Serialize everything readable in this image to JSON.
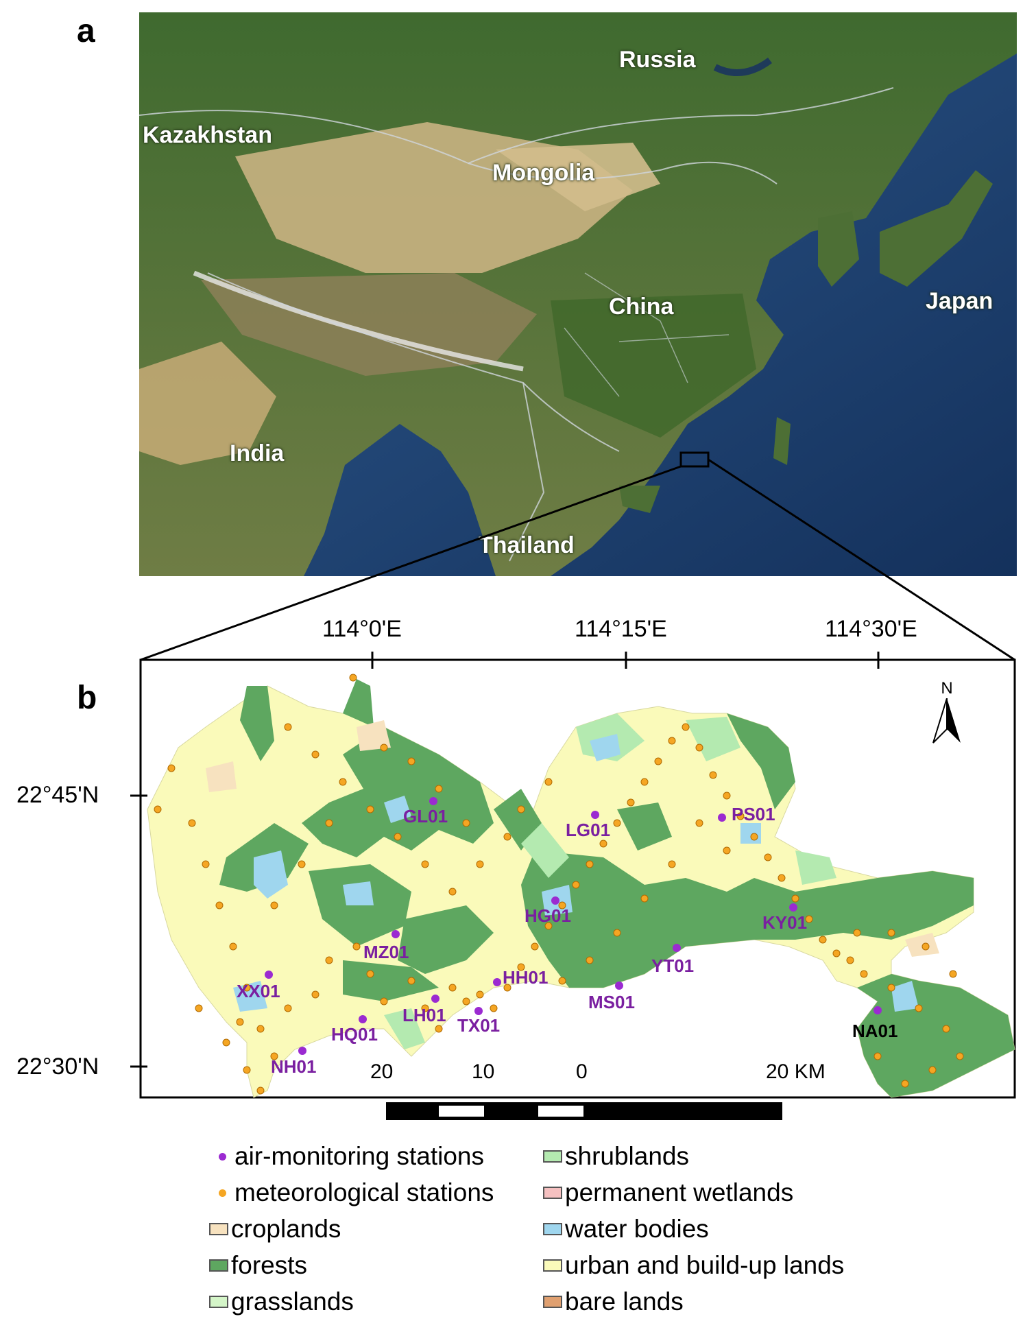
{
  "panels": {
    "a": "a",
    "b": "b"
  },
  "colors": {
    "forest": "#5ea760",
    "urban": "#fafaba",
    "shrub": "#b4eab0",
    "grass": "#d4f5c8",
    "water": "#9fd6ee",
    "cropland": "#f7e2bf",
    "wetland": "#f5c0c0",
    "bare": "#e0a070",
    "air_station": "#9b2ad1",
    "met_station": "#f5a623",
    "label": "#7a1fa0"
  },
  "map_a": {
    "countries": [
      "Russia",
      "Kazakhstan",
      "Mongolia",
      "China",
      "Japan",
      "India",
      "Thailand"
    ]
  },
  "map_b": {
    "lon_labels": [
      "114°0'E",
      "114°15'E",
      "114°30'E"
    ],
    "lat_labels": [
      "22°45'N",
      "22°30'N"
    ],
    "north": "N",
    "scale_labels": [
      "20",
      "10",
      "0",
      "20 KM"
    ],
    "air_stations": [
      "GL01",
      "LG01",
      "PS01",
      "HG01",
      "KY01",
      "MZ01",
      "YT01",
      "XX01",
      "HH01",
      "MS01",
      "LH01",
      "TX01",
      "HQ01",
      "NA01",
      "NH01"
    ]
  },
  "legend": {
    "items": [
      {
        "label": "air-monitoring stations",
        "icon": "dot-icon",
        "color": "#9b2ad1"
      },
      {
        "label": "meteorological stations",
        "icon": "dot-icon",
        "color": "#f5a623"
      },
      {
        "label": "croplands",
        "icon": "swatch",
        "color": "#f7e2bf"
      },
      {
        "label": "forests",
        "icon": "swatch",
        "color": "#5ea760"
      },
      {
        "label": "grasslands",
        "icon": "swatch",
        "color": "#d4f5c8"
      },
      {
        "label": "shrublands",
        "icon": "swatch",
        "color": "#b4eab0"
      },
      {
        "label": "permanent wetlands",
        "icon": "swatch",
        "color": "#f5c0c0"
      },
      {
        "label": "water bodies",
        "icon": "swatch",
        "color": "#9fd6ee"
      },
      {
        "label": "urban and build-up lands",
        "icon": "swatch",
        "color": "#fafaba"
      },
      {
        "label": "bare lands",
        "icon": "swatch",
        "color": "#e0a070"
      }
    ]
  }
}
